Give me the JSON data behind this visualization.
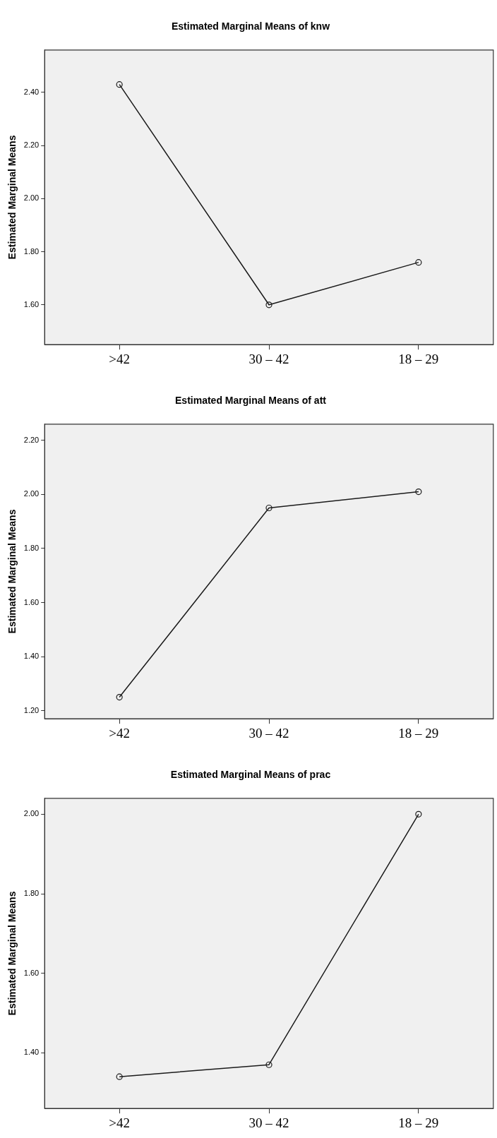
{
  "chart_data": [
    {
      "type": "line",
      "title": "Estimated Marginal Means of knw",
      "ylabel": "Estimated Marginal Means",
      "categories": [
        ">42",
        "30 – 42",
        "18 – 29"
      ],
      "series": [
        {
          "color": "#1a1a1a",
          "values": [
            2.43,
            1.6,
            1.76
          ]
        }
      ],
      "ylim": [
        1.45,
        2.56
      ],
      "yticks": [
        {
          "value": 1.6,
          "label": "1.60"
        },
        {
          "value": 1.8,
          "label": "1.80"
        },
        {
          "value": 2.0,
          "label": "2.00"
        },
        {
          "value": 2.2,
          "label": "2.20"
        },
        {
          "value": 2.4,
          "label": "2.40"
        }
      ],
      "marker": "circle",
      "legend": false,
      "grid": false
    },
    {
      "type": "line",
      "title": "Estimated Marginal Means of att",
      "ylabel": "Estimated Marginal Means",
      "categories": [
        ">42",
        "30 – 42",
        "18 – 29"
      ],
      "series": [
        {
          "color": "#1a1a1a",
          "values": [
            1.25,
            1.95,
            2.01
          ]
        }
      ],
      "ylim": [
        1.17,
        2.26
      ],
      "yticks": [
        {
          "value": 1.2,
          "label": "1.20"
        },
        {
          "value": 1.4,
          "label": "1.40"
        },
        {
          "value": 1.6,
          "label": "1.60"
        },
        {
          "value": 1.8,
          "label": "1.80"
        },
        {
          "value": 2.0,
          "label": "2.00"
        },
        {
          "value": 2.2,
          "label": "2.20"
        }
      ],
      "marker": "circle",
      "legend": false,
      "grid": false
    },
    {
      "type": "line",
      "title": "Estimated Marginal Means of prac",
      "ylabel": "Estimated Marginal Means",
      "categories": [
        ">42",
        "30 – 42",
        "18 – 29"
      ],
      "series": [
        {
          "color": "#1a1a1a",
          "values": [
            1.34,
            1.37,
            2.0
          ]
        }
      ],
      "ylim": [
        1.26,
        2.04
      ],
      "yticks": [
        {
          "value": 1.4,
          "label": "1.40"
        },
        {
          "value": 1.6,
          "label": "1.60"
        },
        {
          "value": 1.8,
          "label": "1.80"
        },
        {
          "value": 2.0,
          "label": "2.00"
        }
      ],
      "marker": "circle",
      "legend": false,
      "grid": false
    }
  ]
}
